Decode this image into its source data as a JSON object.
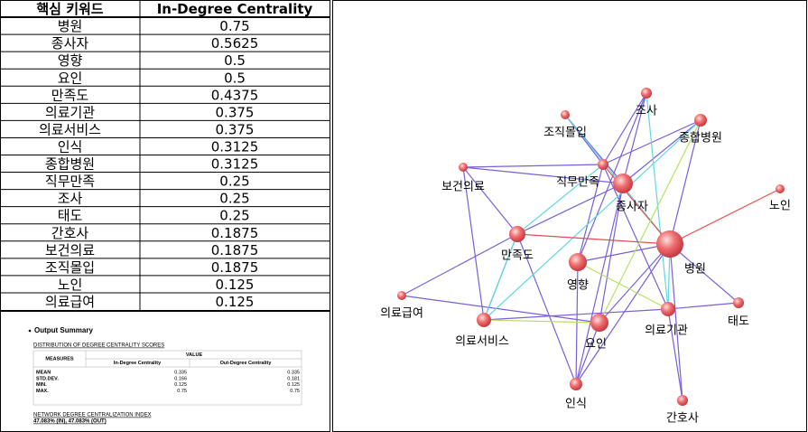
{
  "table": {
    "headers": [
      "핵심 키워드",
      "In-Degree Centrality"
    ],
    "rows": [
      [
        "병원",
        0.75
      ],
      [
        "종사자",
        0.5625
      ],
      [
        "영향",
        0.5
      ],
      [
        "요인",
        0.5
      ],
      [
        "만족도",
        0.4375
      ],
      [
        "의료기관",
        0.375
      ],
      [
        "의료서비스",
        0.375
      ],
      [
        "인식",
        0.3125
      ],
      [
        "종합병원",
        0.3125
      ],
      [
        "직무만족",
        0.25
      ],
      [
        "조사",
        0.25
      ],
      [
        "태도",
        0.25
      ],
      [
        "간호사",
        0.1875
      ],
      [
        "보건의료",
        0.1875
      ],
      [
        "조직몰입",
        0.1875
      ],
      [
        "노인",
        0.125
      ],
      [
        "의료급여",
        0.125
      ]
    ]
  },
  "summary": {
    "title": "Output Summary",
    "section": "DISTRIBUTION OF DEGREE CENTRALITY SCORES",
    "measures_header": "MEASURES",
    "value_header": "VALUE",
    "columns": [
      "In-Degree Centrality",
      "Out-Degree Centrality"
    ],
    "rows": [
      [
        "MEAN",
        0.335,
        0.335
      ],
      [
        "STD.DEV.",
        0.166,
        0.181
      ],
      [
        "MIN.",
        0.125,
        0.125
      ],
      [
        "MAX.",
        0.75,
        0.75
      ]
    ],
    "index_title": "NETWORK DEGREE CENTRALIZATION INDEX",
    "index_text": "47.083% (IN), 47.083% (OUT)"
  },
  "network": {
    "nodes": [
      "병원",
      "종사자",
      "영향",
      "요인",
      "만족도",
      "의료기관",
      "의료서비스",
      "인식",
      "종합병원",
      "직무만족",
      "조사",
      "태도",
      "간호사",
      "보건의료",
      "조직몰입",
      "노인",
      "의료급여"
    ]
  }
}
